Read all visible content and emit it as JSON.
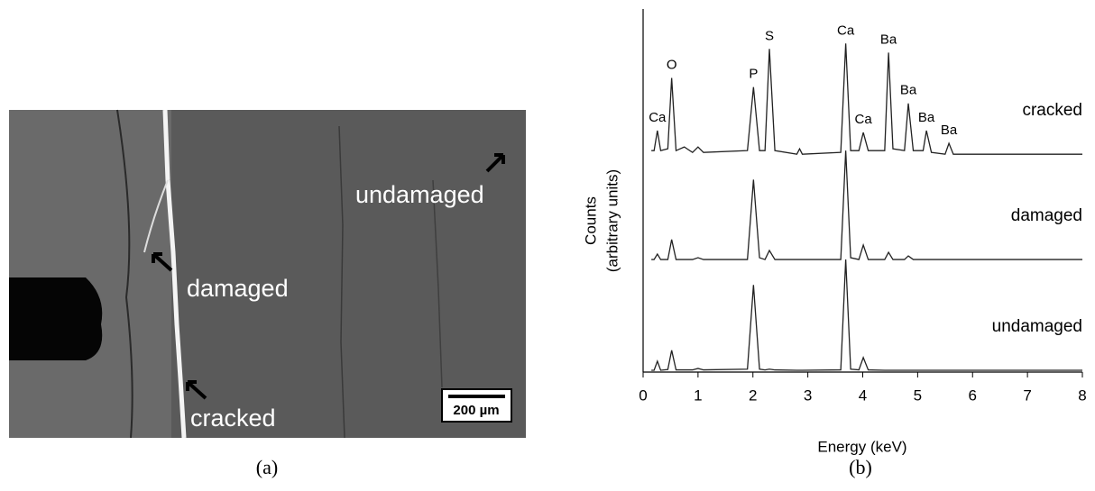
{
  "image_panel": {
    "caption": "(a)",
    "labels": [
      "undamaged",
      "damaged",
      "cracked"
    ],
    "scale_bar": "200 µm"
  },
  "chart_data": {
    "type": "line",
    "caption": "(b)",
    "x_label": "Energy (keV)",
    "y_label": [
      "Counts",
      "(arbitrary units)"
    ],
    "xlim": [
      0,
      8
    ],
    "xticks": [
      0,
      1,
      2,
      3,
      4,
      5,
      6,
      7,
      8
    ],
    "ylim": [
      0,
      100
    ],
    "color": "#222222",
    "x": [
      0.15,
      0.2,
      0.26,
      0.32,
      0.45,
      0.52,
      0.6,
      0.75,
      0.9,
      1.0,
      1.1,
      1.9,
      2.01,
      2.12,
      2.22,
      2.3,
      2.4,
      2.8,
      2.85,
      2.9,
      3.6,
      3.69,
      3.78,
      3.93,
      4.01,
      4.1,
      4.4,
      4.47,
      4.55,
      4.76,
      4.83,
      4.92,
      5.1,
      5.16,
      5.25,
      5.5,
      5.57,
      5.65,
      6.0,
      8.0
    ],
    "series": [
      {
        "name": "cracked",
        "values": [
          61,
          61,
          66.5,
          61,
          61.5,
          81,
          61,
          62,
          60.5,
          62,
          60.5,
          61,
          78.5,
          61,
          61,
          89,
          61,
          60,
          61.5,
          60,
          60.5,
          90.5,
          61,
          61,
          66,
          61,
          61,
          88,
          61.5,
          61,
          74,
          61,
          61,
          66.5,
          60.5,
          60,
          63,
          60,
          60,
          60
        ]
      },
      {
        "name": "damaged",
        "values": [
          31,
          31,
          32.5,
          31,
          31,
          36.5,
          31,
          31,
          31,
          31.5,
          31,
          31,
          53,
          31.5,
          31,
          33.5,
          31,
          31,
          31,
          31,
          31,
          61,
          31.5,
          31,
          35,
          31,
          31,
          33,
          31,
          31,
          32,
          31,
          31,
          31,
          31,
          31,
          31,
          31,
          31,
          31
        ]
      },
      {
        "name": "undamaged",
        "values": [
          0.5,
          0.5,
          3,
          0.5,
          0.7,
          6,
          0.6,
          0.6,
          0.6,
          1,
          0.6,
          0.8,
          24,
          0.8,
          0.6,
          0.8,
          0.6,
          0.5,
          0.5,
          0.5,
          0.6,
          31,
          0.8,
          0.6,
          4,
          0.6,
          0.5,
          0.5,
          0.5,
          0.5,
          0.5,
          0.5,
          0.5,
          0.5,
          0.5,
          0.5,
          0.5,
          0.5,
          0.5,
          0.5
        ]
      }
    ],
    "annotations": [
      {
        "text": "Ca",
        "x": 0.26
      },
      {
        "text": "O",
        "x": 0.52
      },
      {
        "text": "P",
        "x": 2.01
      },
      {
        "text": "S",
        "x": 2.3
      },
      {
        "text": "Ca",
        "x": 3.69
      },
      {
        "text": "Ca",
        "x": 4.01
      },
      {
        "text": "Ba",
        "x": 4.47
      },
      {
        "text": "Ba",
        "x": 4.83
      },
      {
        "text": "Ba",
        "x": 5.16
      },
      {
        "text": "Ba",
        "x": 5.57
      }
    ]
  }
}
